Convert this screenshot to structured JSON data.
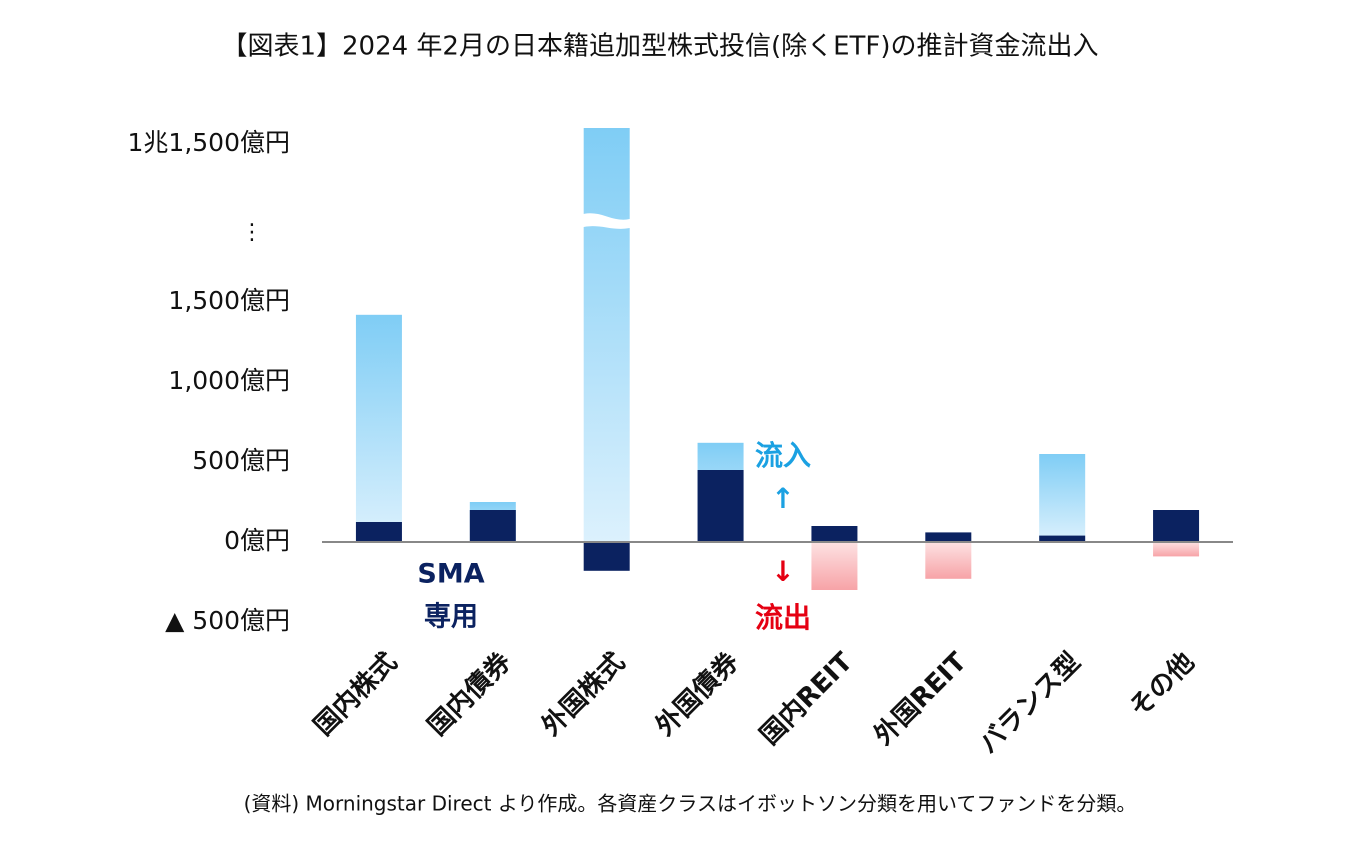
{
  "chart_data": {
    "type": "bar",
    "title": "【図表1】2024 年2月の日本籍追加型株式投信(除くETF)の推計資金流出入",
    "source": "(資料) Morningstar Direct より作成。各資産クラスはイボットソン分類を用いてファンドを分類。",
    "categories": [
      "国内株式",
      "国内債券",
      "外国株式",
      "外国債券",
      "国内REIT",
      "外国REIT",
      "バランス型",
      "その他"
    ],
    "series": [
      {
        "color": "#7fcdf5",
        "negative_color": "#f7a3a7",
        "values": [
          1420,
          250,
          11600,
          620,
          -300,
          -230,
          550,
          -90
        ]
      },
      {
        "color": "#0b2260",
        "values": [
          125,
          200,
          -180,
          450,
          100,
          60,
          40,
          200
        ]
      }
    ],
    "yticks": [
      {
        "value": -500,
        "label": "▲ 500億円"
      },
      {
        "value": 0,
        "label": "0億円"
      },
      {
        "value": 500,
        "label": "500億円"
      },
      {
        "value": 1000,
        "label": "1,000億円"
      },
      {
        "value": 1500,
        "label": "1,500億円"
      },
      {
        "value": 11500,
        "label": "1兆1,500億円"
      }
    ],
    "axis_break": true,
    "annotations": {
      "break": "⋮",
      "sma1": "SMA",
      "sma2": "専用",
      "inflow": "流入",
      "up": "↑",
      "down": "↓",
      "outflow": "流出"
    }
  }
}
